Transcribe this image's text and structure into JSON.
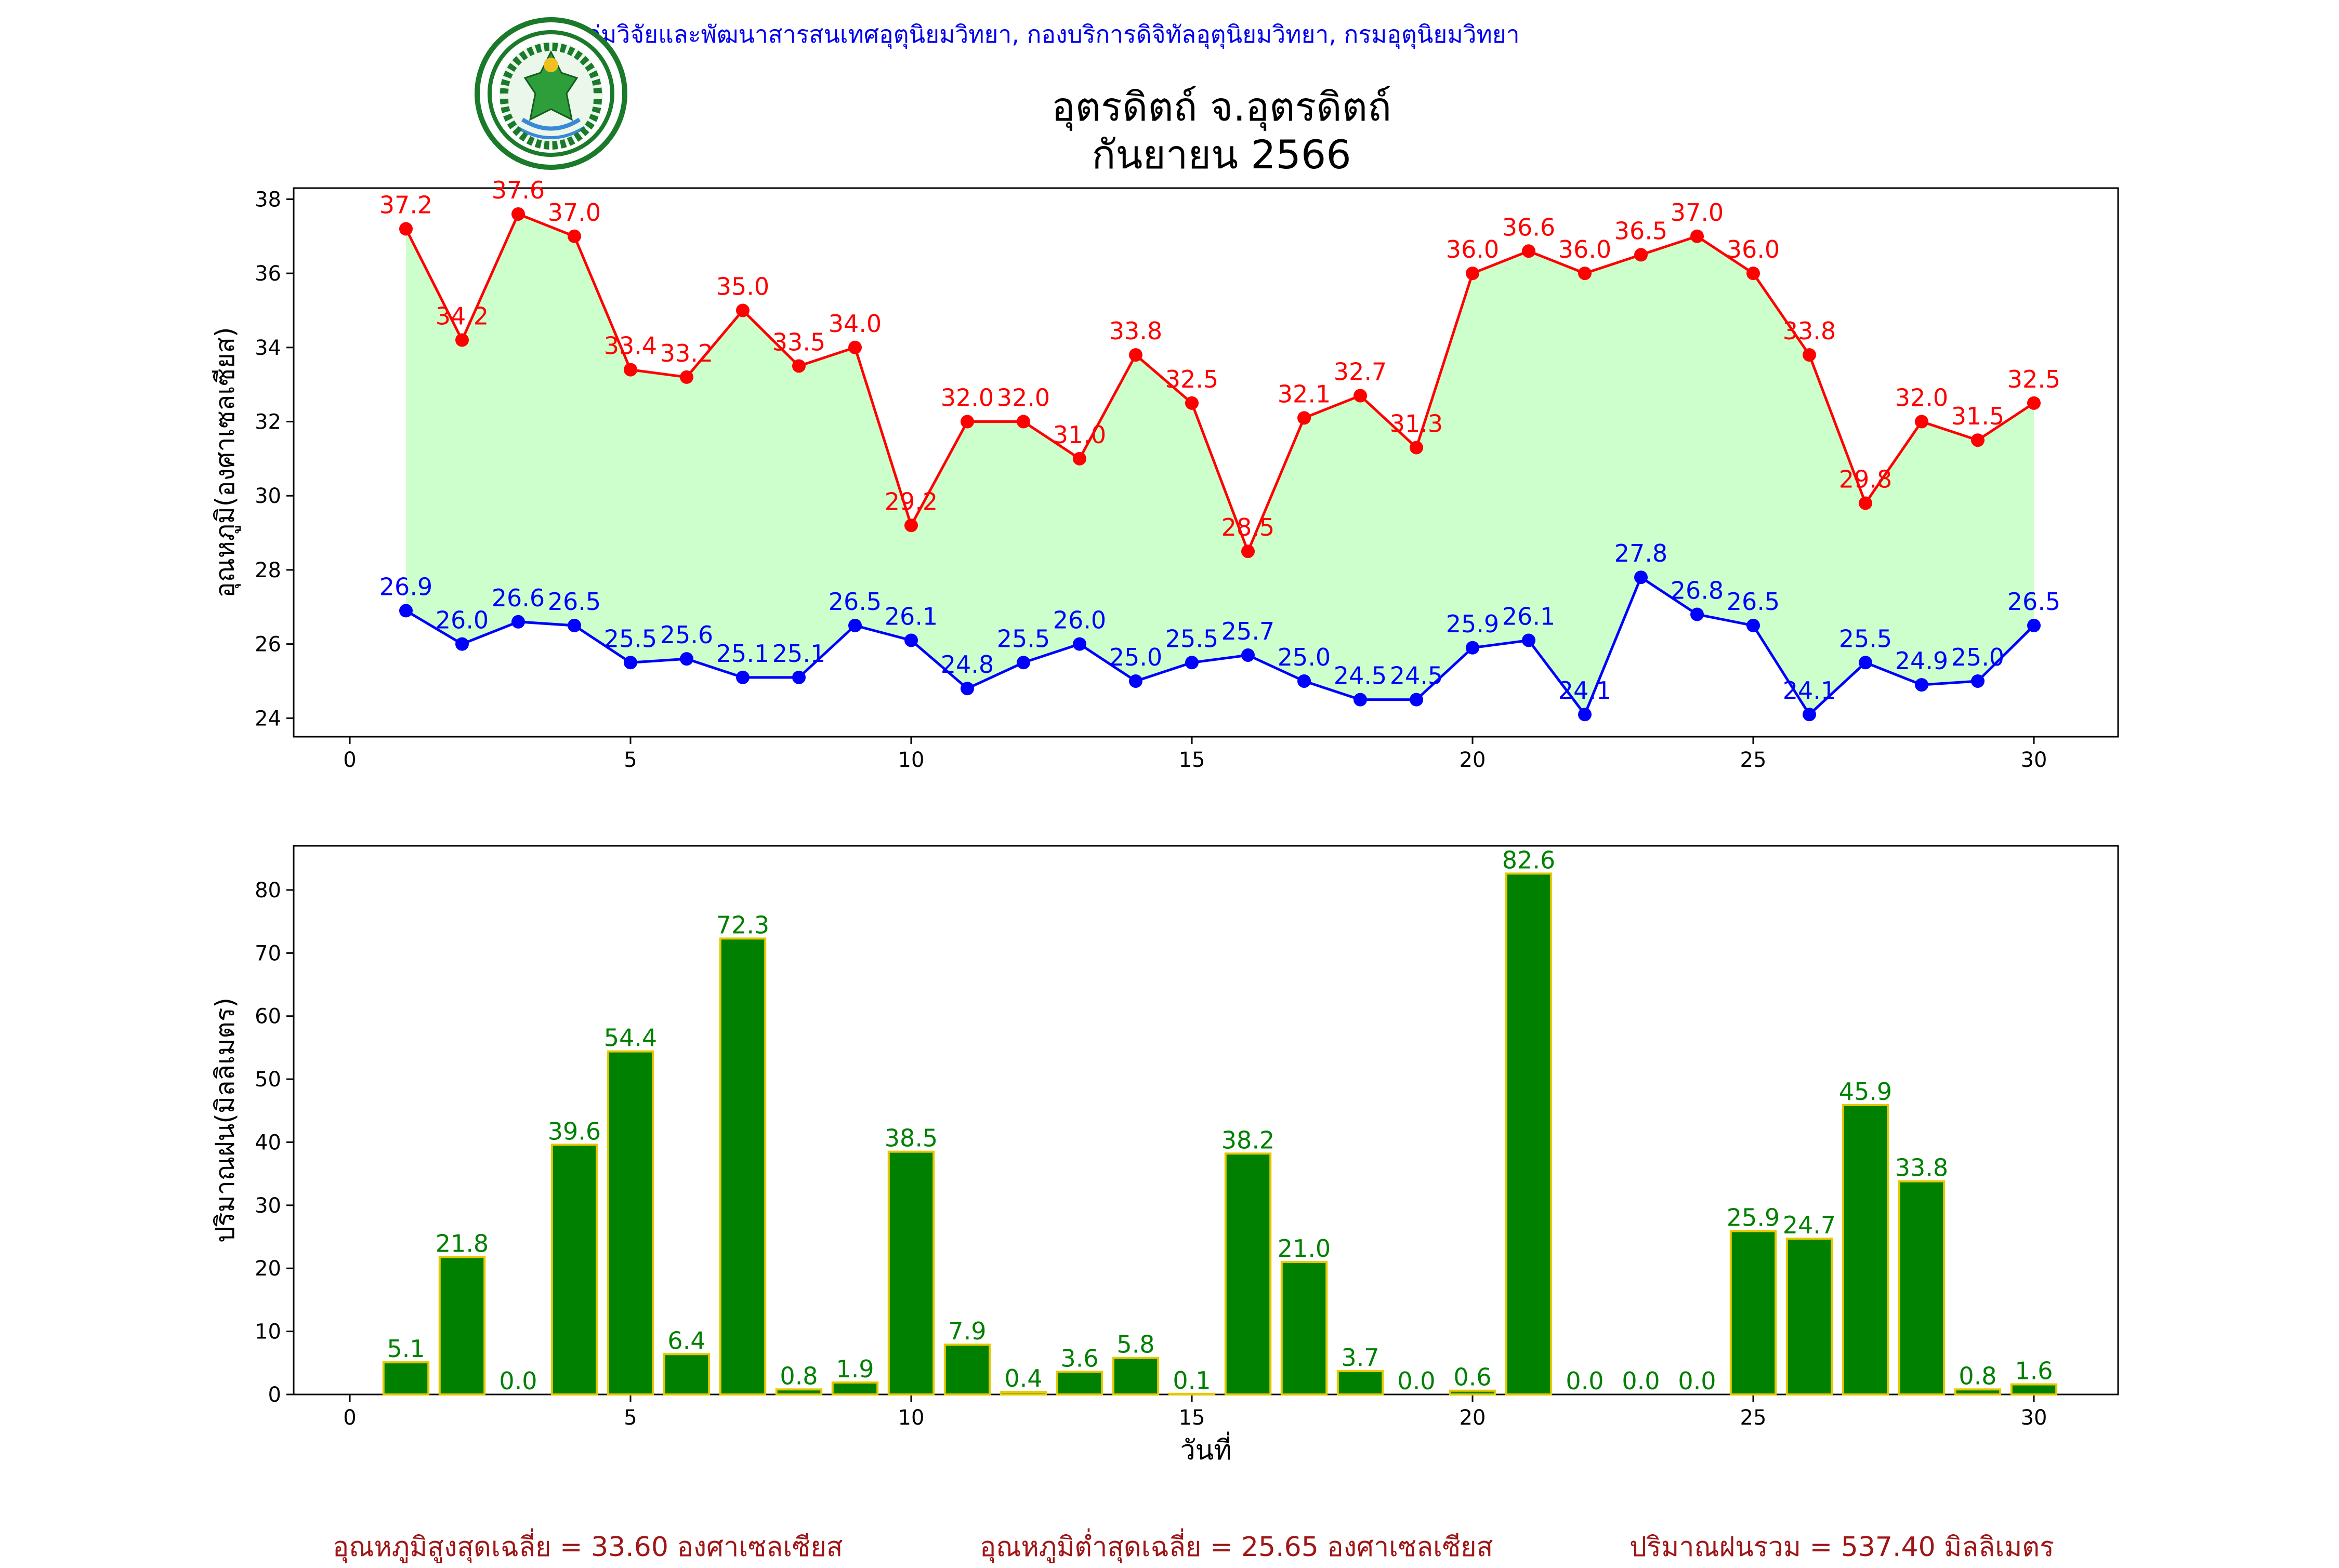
{
  "header": {
    "department_line": "กลุ่มวิจัยและพัฒนาสารสนเทศอุตุนิยมวิทยา, กองบริการดิจิทัลอุตุนิยมวิทยา, กรมอุตุนิยมวิทยา",
    "title_line1": "อุตรดิตถ์ จ.อุตรดิตถ์",
    "title_line2": "กันยายน 2566",
    "logo_text": "กรมอุตุนิยมวิทยา · METEOROLOGICAL DEPARTMENT"
  },
  "chart_data": [
    {
      "type": "line",
      "title": "อุตรดิตถ์ จ.อุตรดิตถ์ กันยายน 2566",
      "xlabel": "",
      "ylabel": "อุณหภูมิ(องศาเซลเซียส)",
      "xlim": [
        -1,
        31.5
      ],
      "ylim": [
        23.5,
        38.3
      ],
      "xticks": [
        0,
        5,
        10,
        15,
        20,
        25,
        30
      ],
      "yticks": [
        24,
        26,
        28,
        30,
        32,
        34,
        36,
        38
      ],
      "grid": false,
      "fill_between": true,
      "x": [
        1,
        2,
        3,
        4,
        5,
        6,
        7,
        8,
        9,
        10,
        11,
        12,
        13,
        14,
        15,
        16,
        17,
        18,
        19,
        20,
        21,
        22,
        23,
        24,
        25,
        26,
        27,
        28,
        29,
        30
      ],
      "series": [
        {
          "color": "#ff0000",
          "values": [
            37.2,
            34.2,
            37.6,
            37.0,
            33.4,
            33.2,
            35.0,
            33.5,
            34.0,
            29.2,
            32.0,
            32.0,
            31.0,
            33.8,
            32.5,
            28.5,
            32.1,
            32.7,
            31.3,
            36.0,
            36.6,
            36.0,
            36.5,
            37.0,
            36.0,
            33.8,
            29.8,
            32.0,
            31.5,
            32.5
          ]
        },
        {
          "color": "#0000ff",
          "values": [
            26.9,
            26.0,
            26.6,
            26.5,
            25.5,
            25.6,
            25.1,
            25.1,
            26.5,
            26.1,
            24.8,
            25.5,
            26.0,
            25.0,
            25.5,
            25.7,
            25.0,
            24.5,
            24.5,
            25.9,
            26.1,
            24.1,
            27.8,
            26.8,
            26.5,
            24.1,
            25.5,
            24.9,
            25.0,
            26.5
          ]
        }
      ],
      "fill_color": "#ccffcc"
    },
    {
      "type": "bar",
      "xlabel": "วันที่",
      "ylabel": "ปริมาณฝน(มิลลิเมตร)",
      "xlim": [
        -1,
        31.5
      ],
      "ylim": [
        0,
        87
      ],
      "xticks": [
        0,
        5,
        10,
        15,
        20,
        25,
        30
      ],
      "yticks": [
        0,
        10,
        20,
        30,
        40,
        50,
        60,
        70,
        80
      ],
      "grid": false,
      "bar_color": "#008000",
      "bar_edge_color": "#e6c800",
      "label_color": "#008000",
      "x": [
        1,
        2,
        3,
        4,
        5,
        6,
        7,
        8,
        9,
        10,
        11,
        12,
        13,
        14,
        15,
        16,
        17,
        18,
        19,
        20,
        21,
        22,
        23,
        24,
        25,
        26,
        27,
        28,
        29,
        30
      ],
      "values": [
        5.1,
        21.8,
        0.0,
        39.6,
        54.4,
        6.4,
        72.3,
        0.8,
        1.9,
        38.5,
        7.9,
        0.4,
        3.6,
        5.8,
        0.1,
        38.2,
        21.0,
        3.7,
        0.0,
        0.6,
        82.6,
        0.0,
        0.0,
        0.0,
        25.9,
        24.7,
        45.9,
        33.8,
        0.8,
        1.6
      ],
      "labeled": [
        true,
        true,
        true,
        true,
        true,
        true,
        true,
        true,
        true,
        true,
        true,
        true,
        true,
        true,
        true,
        true,
        true,
        true,
        true,
        true,
        true,
        true,
        true,
        true,
        true,
        true,
        true,
        true,
        true,
        true
      ]
    }
  ],
  "footer": {
    "avg_max": "อุณหภูมิสูงสุดเฉลี่ย = 33.60 องศาเซลเซียส",
    "avg_min": "อุณหภูมิต่ำสุดเฉลี่ย = 25.65 องศาเซลเซียส",
    "total_rain": "ปริมาณฝนรวม = 537.40 มิลลิเมตร"
  }
}
